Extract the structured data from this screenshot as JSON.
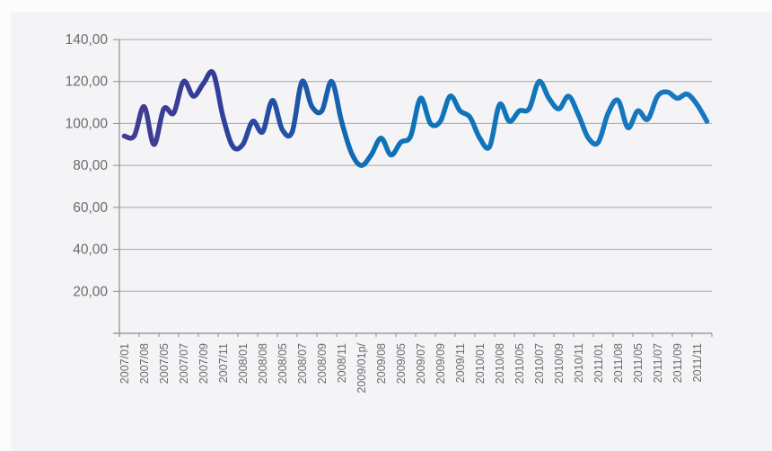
{
  "chart_data": {
    "type": "line",
    "title": "",
    "xlabel": "",
    "ylabel": "",
    "legend": "none",
    "grid": true,
    "ylim": [
      0,
      140
    ],
    "y_gridline_step": 20,
    "y_tick_labels": [
      "140,00",
      "120,00",
      "100,00",
      "80,00",
      "60,00",
      "40,00",
      "20,00"
    ],
    "x_tick_labels": [
      "2007/01",
      "2007/08",
      "2007/05",
      "2007/07",
      "2007/09",
      "2007/11",
      "2008/01",
      "2008/08",
      "2008/05",
      "2008/07",
      "2008/09",
      "2008/11",
      "2009/01p/",
      "2009/08",
      "2009/05",
      "2009/07",
      "2009/09",
      "2009/11",
      "2010/01",
      "2010/08",
      "2010/05",
      "2010/07",
      "2010/09",
      "2010/11",
      "2011/01",
      "2011/08",
      "2011/05",
      "2011/07",
      "2011/09",
      "2011/11"
    ],
    "x": [
      "2007/01",
      "2007/02",
      "2007/03",
      "2007/04",
      "2007/05",
      "2007/06",
      "2007/07",
      "2007/08",
      "2007/09",
      "2007/10",
      "2007/11",
      "2007/12",
      "2008/01",
      "2008/02",
      "2008/03",
      "2008/04",
      "2008/05",
      "2008/06",
      "2008/07",
      "2008/08",
      "2008/09",
      "2008/10",
      "2008/11",
      "2008/12",
      "2009/01",
      "2009/02",
      "2009/03",
      "2009/04",
      "2009/05",
      "2009/06",
      "2009/07",
      "2009/08",
      "2009/09",
      "2009/10",
      "2009/11",
      "2009/12",
      "2010/01",
      "2010/02",
      "2010/03",
      "2010/04",
      "2010/05",
      "2010/06",
      "2010/07",
      "2010/08",
      "2010/09",
      "2010/10",
      "2010/11",
      "2010/12",
      "2011/01",
      "2011/02",
      "2011/03",
      "2011/04",
      "2011/05",
      "2011/06",
      "2011/07",
      "2011/08",
      "2011/09",
      "2011/10",
      "2011/11",
      "2011/12"
    ],
    "values": [
      94,
      94,
      108,
      90,
      107,
      105,
      120,
      113,
      119,
      124,
      103,
      89,
      90,
      101,
      96,
      111,
      97,
      96,
      120,
      108,
      106,
      120,
      101,
      86,
      80,
      85,
      93,
      85,
      91,
      94,
      112,
      100,
      101,
      113,
      106,
      103,
      93,
      89,
      109,
      101,
      106,
      107,
      120,
      112,
      107,
      113,
      104,
      93,
      91,
      105,
      111,
      98,
      106,
      102,
      113,
      115,
      112,
      114,
      109,
      101
    ],
    "line_gradient": [
      {
        "offset": 0.0,
        "color": "#413E93"
      },
      {
        "offset": 0.15,
        "color": "#313D99"
      },
      {
        "offset": 0.3,
        "color": "#1F55A8"
      },
      {
        "offset": 0.42,
        "color": "#0F70B6"
      },
      {
        "offset": 0.55,
        "color": "#0F74B9"
      },
      {
        "offset": 1.0,
        "color": "#1878BF"
      }
    ],
    "colors": {
      "panel_background": "#f4f4f6",
      "outer_background": "#fcfcfd",
      "gridline": "#a6a6a8",
      "axis": "#8c8c8e",
      "tick": "#8c8c8e",
      "label": "#6b6b6d"
    }
  }
}
